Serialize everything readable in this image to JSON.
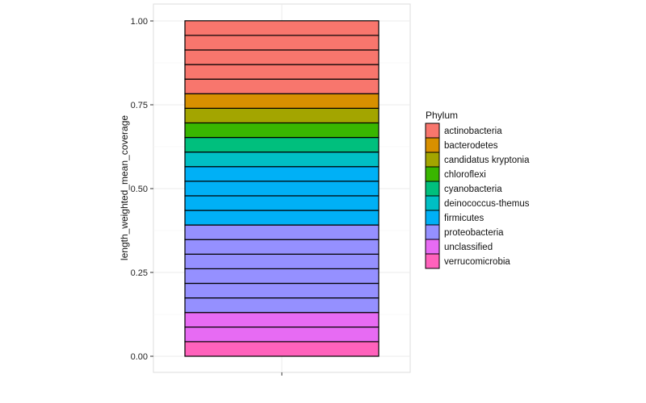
{
  "chart_data": {
    "type": "bar",
    "stacked": true,
    "grid": true,
    "legend_position": "right",
    "ylabel": "length_weighted_mean_coverage",
    "xlabel": "",
    "ylim": [
      0,
      1.05
    ],
    "y_ticks": [
      {
        "value": 0.0,
        "label": "0.00"
      },
      {
        "value": 0.25,
        "label": "0.25"
      },
      {
        "value": 0.5,
        "label": "0.50"
      },
      {
        "value": 0.75,
        "label": "0.75"
      },
      {
        "value": 1.0,
        "label": "1.00"
      }
    ],
    "legend_title": "Phylum",
    "phyla": [
      {
        "name": "actinobacteria",
        "color": "#F8766D"
      },
      {
        "name": "bacterodetes",
        "color": "#D89000"
      },
      {
        "name": "candidatus kryptonia",
        "color": "#A3A500"
      },
      {
        "name": "chloroflexi",
        "color": "#39B600"
      },
      {
        "name": "cyanobacteria",
        "color": "#00BF7D"
      },
      {
        "name": "deinococcus-themus",
        "color": "#00BFC4"
      },
      {
        "name": "firmicutes",
        "color": "#00B0F6"
      },
      {
        "name": "proteobacteria",
        "color": "#9590FF"
      },
      {
        "name": "unclassified",
        "color": "#E76BF3"
      },
      {
        "name": "verrucomicrobia",
        "color": "#FF62BC"
      }
    ],
    "segments": [
      {
        "phylum": "verrucomicrobia",
        "value": 0.0435
      },
      {
        "phylum": "unclassified",
        "value": 0.0435
      },
      {
        "phylum": "unclassified",
        "value": 0.0435
      },
      {
        "phylum": "proteobacteria",
        "value": 0.0435
      },
      {
        "phylum": "proteobacteria",
        "value": 0.0435
      },
      {
        "phylum": "proteobacteria",
        "value": 0.0435
      },
      {
        "phylum": "proteobacteria",
        "value": 0.0435
      },
      {
        "phylum": "proteobacteria",
        "value": 0.0435
      },
      {
        "phylum": "proteobacteria",
        "value": 0.0435
      },
      {
        "phylum": "firmicutes",
        "value": 0.0435
      },
      {
        "phylum": "firmicutes",
        "value": 0.0435
      },
      {
        "phylum": "firmicutes",
        "value": 0.0435
      },
      {
        "phylum": "firmicutes",
        "value": 0.0435
      },
      {
        "phylum": "deinococcus-themus",
        "value": 0.0435
      },
      {
        "phylum": "cyanobacteria",
        "value": 0.0435
      },
      {
        "phylum": "chloroflexi",
        "value": 0.0435
      },
      {
        "phylum": "candidatus kryptonia",
        "value": 0.0435
      },
      {
        "phylum": "bacterodetes",
        "value": 0.0435
      },
      {
        "phylum": "actinobacteria",
        "value": 0.0435
      },
      {
        "phylum": "actinobacteria",
        "value": 0.0435
      },
      {
        "phylum": "actinobacteria",
        "value": 0.0435
      },
      {
        "phylum": "actinobacteria",
        "value": 0.0435
      },
      {
        "phylum": "actinobacteria",
        "value": 0.0435
      }
    ]
  }
}
